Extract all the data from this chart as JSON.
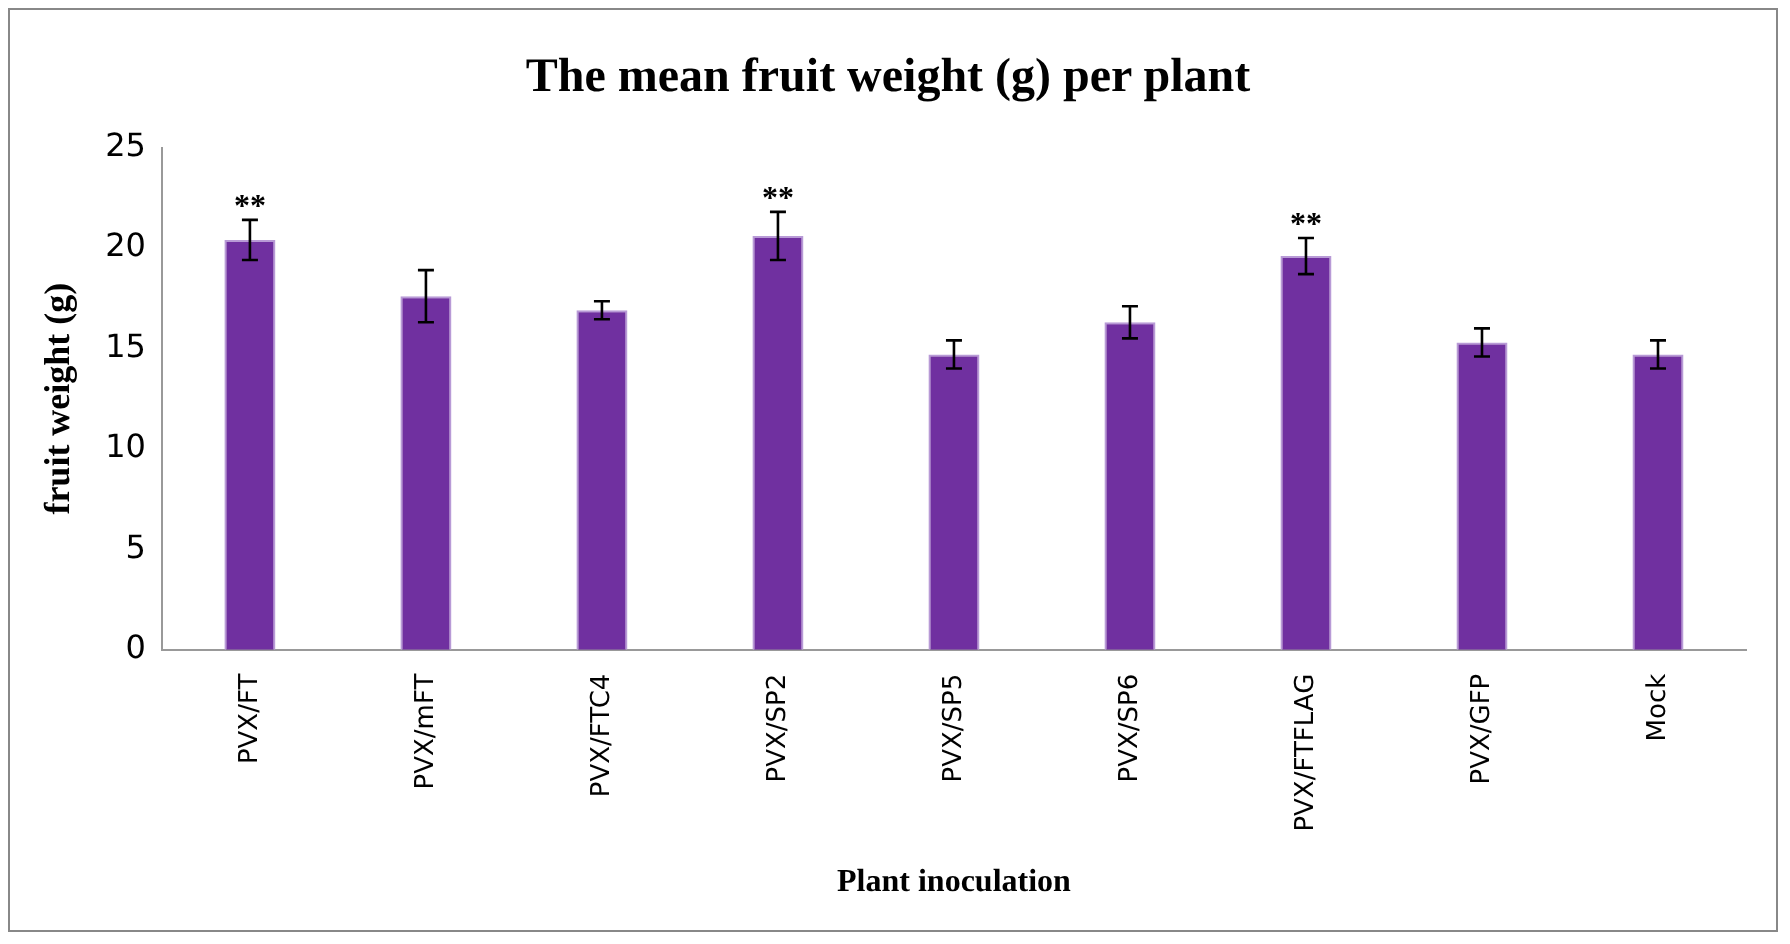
{
  "chart_data": {
    "type": "bar",
    "title": "The mean fruit weight (g) per plant",
    "xlabel": "Plant inoculation",
    "ylabel": "fruit weight (g)",
    "categories": [
      "PVX/FT",
      "PVX/mFT",
      "PVX/FTC4",
      "PVX/SP2",
      "PVX/SP5",
      "PVX/SP6",
      "PVX/FTFLAG",
      "PVX/GFP",
      "Mock"
    ],
    "values": [
      20.4,
      17.6,
      16.9,
      20.6,
      14.7,
      16.3,
      19.6,
      15.3,
      14.7
    ],
    "errors": [
      1.0,
      1.3,
      0.45,
      1.2,
      0.7,
      0.8,
      0.9,
      0.7,
      0.7
    ],
    "color": "#7030a0",
    "ylim": [
      0,
      25
    ],
    "yticks": [
      0,
      5,
      10,
      15,
      20,
      25
    ],
    "grid": false,
    "legend": false,
    "annotations": [
      {
        "text": "**",
        "x": "PVX/FT",
        "y": 21.4
      },
      {
        "text": "**",
        "x": "PVX/SP2",
        "y": 21.8
      },
      {
        "text": "**",
        "x": "PVX/FTFLAG",
        "y": 20.5
      }
    ]
  }
}
